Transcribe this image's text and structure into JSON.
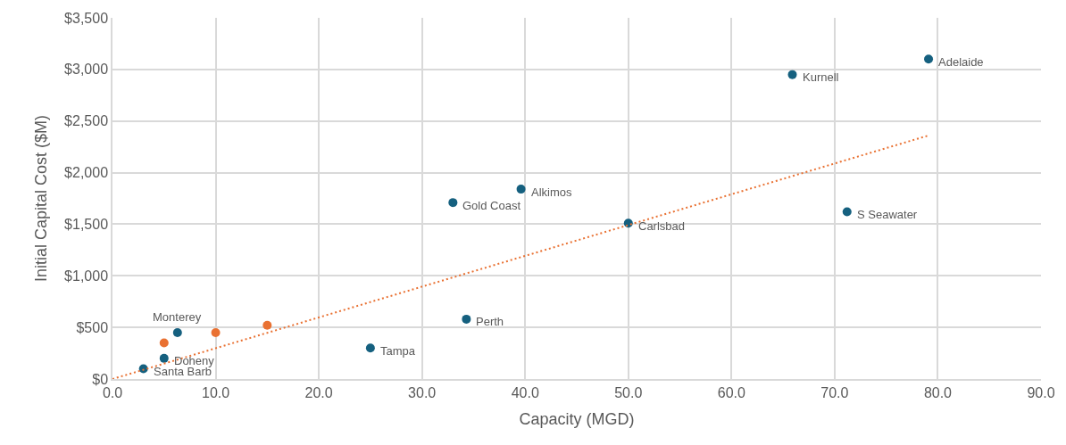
{
  "chart_data": {
    "type": "scatter",
    "xlabel": "Capacity (MGD)",
    "ylabel": "Initial Capital Cost ($M)",
    "series": [
      {
        "color": "#15607f",
        "x": [
          3.0,
          5.0,
          6.3,
          25.0,
          34.3,
          33.0,
          39.6,
          50.0,
          65.9,
          79.1,
          71.2
        ],
        "values": [
          100,
          200,
          450,
          300,
          580,
          1710,
          1840,
          1510,
          2950,
          3100,
          1620
        ]
      },
      {
        "color": "#e97132",
        "x": [
          5.0,
          10.0,
          15.0
        ],
        "values": [
          350,
          450,
          520
        ]
      },
      {
        "type": "line",
        "line_style": "dotted",
        "marker": "none",
        "color": "#e97132",
        "x": [
          0,
          79.1
        ],
        "values": [
          0,
          2360
        ]
      }
    ],
    "annotations": [
      {
        "text": "Santa Barb",
        "x": 3.0,
        "y": 100
      },
      {
        "text": "Doheny",
        "x": 5.0,
        "y": 200
      },
      {
        "text": "Monterey",
        "x": 6.3,
        "y": 450
      },
      {
        "text": "Tampa",
        "x": 25.0,
        "y": 300
      },
      {
        "text": "Perth",
        "x": 34.3,
        "y": 580
      },
      {
        "text": "Gold Coast",
        "x": 33.0,
        "y": 1710
      },
      {
        "text": "Alkimos",
        "x": 39.6,
        "y": 1840
      },
      {
        "text": "Carlsbad",
        "x": 50.0,
        "y": 1510
      },
      {
        "text": "Kurnell",
        "x": 65.9,
        "y": 2950
      },
      {
        "text": "Adelaide",
        "x": 79.1,
        "y": 3100
      },
      {
        "text": "S Seawater",
        "x": 71.2,
        "y": 1620
      }
    ],
    "marker": "circle",
    "xlim": [
      0,
      90
    ],
    "xticks": [
      {
        "value": 0,
        "label": "0.0"
      },
      {
        "value": 10,
        "label": "10.0"
      },
      {
        "value": 20,
        "label": "20.0"
      },
      {
        "value": 30,
        "label": "30.0"
      },
      {
        "value": 40,
        "label": "40.0"
      },
      {
        "value": 50,
        "label": "50.0"
      },
      {
        "value": 60,
        "label": "60.0"
      },
      {
        "value": 70,
        "label": "70.0"
      },
      {
        "value": 80,
        "label": "80.0"
      },
      {
        "value": 90,
        "label": "90.0"
      }
    ],
    "ylim": [
      0,
      3500
    ],
    "yticks": [
      {
        "value": 0,
        "label": "$0"
      },
      {
        "value": 500,
        "label": "$500"
      },
      {
        "value": 1000,
        "label": "$1,000"
      },
      {
        "value": 1500,
        "label": "$1,500"
      },
      {
        "value": 2000,
        "label": "$2,000"
      },
      {
        "value": 2500,
        "label": "$2,500"
      },
      {
        "value": 3000,
        "label": "$3,000"
      },
      {
        "value": 3500,
        "label": "$3,500"
      }
    ],
    "grid": true
  }
}
